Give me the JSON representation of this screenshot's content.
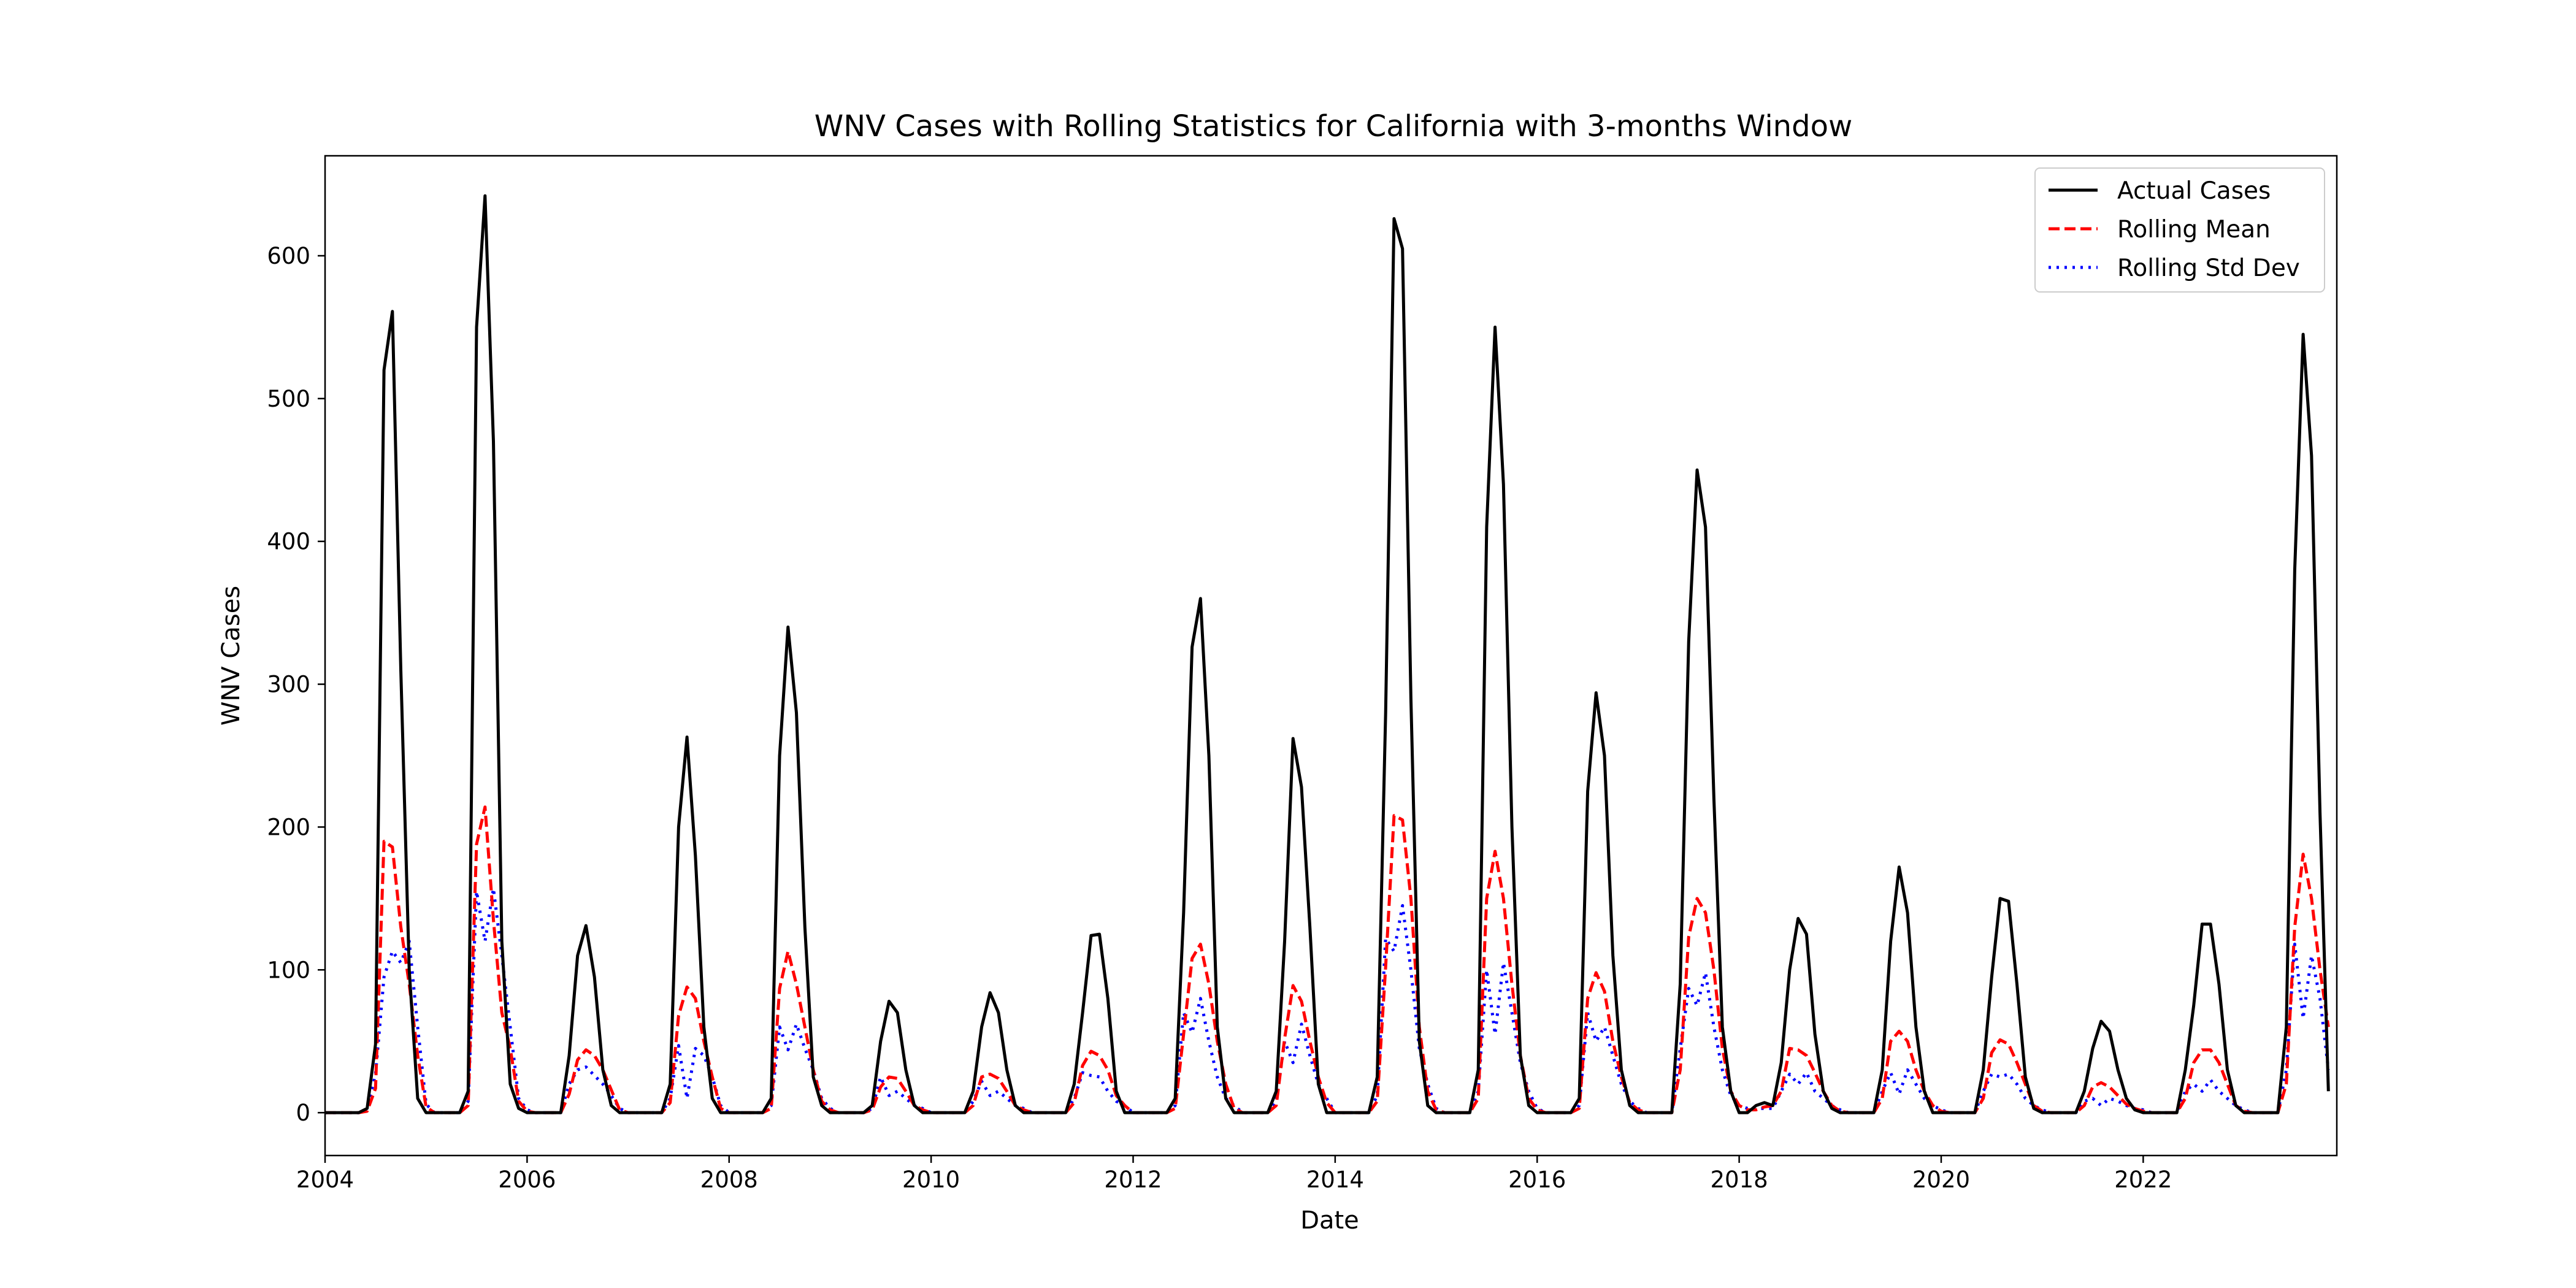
{
  "chart_data": {
    "type": "line",
    "title": "WNV Cases with Rolling Statistics for California with 3-months Window",
    "xlabel": "Date",
    "ylabel": "WNV Cases",
    "x_start": "2004-01",
    "x_end": "2023-12",
    "x_frequency": "monthly",
    "xlim": [
      "2004-01",
      "2023-12"
    ],
    "ylim": [
      -30,
      670
    ],
    "xticks": [
      "2004",
      "2006",
      "2008",
      "2010",
      "2012",
      "2014",
      "2016",
      "2018",
      "2020",
      "2022"
    ],
    "yticks": [
      0,
      100,
      200,
      300,
      400,
      500,
      600
    ],
    "grid": false,
    "legend_position": "top-right",
    "series": [
      {
        "name": "Actual Cases",
        "color": "#000000",
        "style": "solid",
        "values": [
          0,
          0,
          0,
          0,
          0,
          3,
          48,
          520,
          561,
          310,
          100,
          10,
          0,
          0,
          0,
          0,
          0,
          15,
          550,
          642,
          470,
          120,
          20,
          3,
          0,
          0,
          0,
          0,
          0,
          40,
          110,
          131,
          95,
          30,
          5,
          0,
          0,
          0,
          0,
          0,
          0,
          20,
          200,
          263,
          180,
          60,
          10,
          0,
          0,
          0,
          0,
          0,
          0,
          10,
          250,
          340,
          280,
          130,
          25,
          5,
          0,
          0,
          0,
          0,
          0,
          5,
          50,
          78,
          70,
          30,
          5,
          0,
          0,
          0,
          0,
          0,
          0,
          15,
          60,
          84,
          70,
          30,
          5,
          0,
          0,
          0,
          0,
          0,
          0,
          20,
          70,
          124,
          125,
          80,
          15,
          0,
          0,
          0,
          0,
          0,
          0,
          10,
          140,
          326,
          360,
          250,
          60,
          10,
          0,
          0,
          0,
          0,
          0,
          15,
          120,
          262,
          228,
          130,
          20,
          0,
          0,
          0,
          0,
          0,
          0,
          25,
          280,
          626,
          605,
          290,
          50,
          5,
          0,
          0,
          0,
          0,
          0,
          30,
          410,
          550,
          440,
          200,
          40,
          5,
          0,
          0,
          0,
          0,
          0,
          10,
          225,
          294,
          250,
          110,
          30,
          5,
          0,
          0,
          0,
          0,
          0,
          90,
          330,
          450,
          410,
          220,
          60,
          15,
          0,
          0,
          5,
          7,
          5,
          35,
          100,
          136,
          125,
          55,
          15,
          3,
          0,
          0,
          0,
          0,
          0,
          30,
          120,
          172,
          140,
          60,
          15,
          0,
          0,
          0,
          0,
          0,
          0,
          30,
          95,
          150,
          148,
          90,
          25,
          3,
          0,
          0,
          0,
          0,
          0,
          15,
          45,
          64,
          57,
          30,
          10,
          2,
          0,
          0,
          0,
          0,
          0,
          30,
          75,
          132,
          132,
          90,
          30,
          5,
          0,
          0,
          0,
          0,
          0,
          60,
          380,
          545,
          460,
          210,
          15
        ]
      },
      {
        "name": "Rolling Mean",
        "color": "#ff0000",
        "style": "dashed",
        "values": [
          0,
          0,
          0,
          0,
          0,
          1,
          17,
          190,
          186,
          130,
          90,
          40,
          4,
          0,
          0,
          0,
          0,
          5,
          188,
          214,
          135,
          70,
          45,
          8,
          1,
          0,
          0,
          0,
          0,
          13,
          37,
          44,
          40,
          30,
          16,
          2,
          0,
          0,
          0,
          0,
          0,
          7,
          68,
          88,
          80,
          50,
          25,
          3,
          0,
          0,
          0,
          0,
          0,
          3,
          87,
          113,
          90,
          60,
          30,
          8,
          2,
          0,
          0,
          0,
          0,
          2,
          18,
          25,
          24,
          15,
          5,
          2,
          0,
          0,
          0,
          0,
          0,
          5,
          25,
          27,
          24,
          15,
          5,
          2,
          0,
          0,
          0,
          0,
          0,
          7,
          33,
          43,
          40,
          30,
          12,
          5,
          0,
          0,
          0,
          0,
          0,
          3,
          55,
          108,
          118,
          90,
          50,
          20,
          3,
          0,
          0,
          0,
          0,
          5,
          52,
          89,
          78,
          50,
          25,
          7,
          0,
          0,
          0,
          0,
          0,
          8,
          102,
          208,
          205,
          150,
          60,
          15,
          2,
          0,
          0,
          0,
          0,
          10,
          150,
          183,
          150,
          90,
          40,
          10,
          2,
          0,
          0,
          0,
          0,
          3,
          80,
          98,
          85,
          50,
          25,
          7,
          2,
          0,
          0,
          0,
          0,
          30,
          123,
          150,
          140,
          100,
          45,
          15,
          5,
          2,
          2,
          4,
          5,
          15,
          45,
          44,
          40,
          28,
          15,
          5,
          1,
          0,
          0,
          0,
          0,
          10,
          50,
          57,
          50,
          30,
          15,
          5,
          1,
          0,
          0,
          0,
          0,
          10,
          42,
          51,
          48,
          35,
          20,
          5,
          1,
          0,
          0,
          0,
          0,
          5,
          18,
          21,
          18,
          12,
          6,
          3,
          1,
          0,
          0,
          0,
          0,
          10,
          35,
          44,
          44,
          35,
          20,
          5,
          1,
          0,
          0,
          0,
          0,
          20,
          130,
          181,
          150,
          100,
          60
        ]
      },
      {
        "name": "Rolling Std Dev",
        "color": "#0000ff",
        "style": "dotted",
        "values": [
          0,
          0,
          0,
          0,
          0,
          2,
          27,
          95,
          113,
          105,
          120,
          60,
          6,
          0,
          0,
          0,
          0,
          8,
          155,
          120,
          157,
          110,
          60,
          10,
          2,
          0,
          0,
          0,
          0,
          20,
          30,
          32,
          26,
          20,
          12,
          3,
          0,
          0,
          0,
          0,
          0,
          10,
          47,
          10,
          45,
          40,
          25,
          5,
          0,
          0,
          0,
          0,
          0,
          5,
          60,
          44,
          62,
          45,
          30,
          10,
          3,
          0,
          0,
          0,
          0,
          3,
          25,
          12,
          15,
          10,
          5,
          3,
          0,
          0,
          0,
          0,
          0,
          8,
          22,
          12,
          15,
          10,
          5,
          3,
          0,
          0,
          0,
          0,
          0,
          10,
          28,
          26,
          25,
          15,
          8,
          5,
          0,
          0,
          0,
          0,
          0,
          5,
          70,
          56,
          80,
          50,
          25,
          10,
          5,
          0,
          0,
          0,
          0,
          8,
          50,
          35,
          62,
          40,
          20,
          10,
          0,
          0,
          0,
          0,
          0,
          12,
          122,
          113,
          145,
          100,
          45,
          20,
          3,
          0,
          0,
          0,
          0,
          15,
          100,
          55,
          105,
          70,
          35,
          15,
          3,
          0,
          0,
          0,
          0,
          5,
          70,
          50,
          60,
          40,
          20,
          8,
          3,
          0,
          0,
          0,
          0,
          45,
          87,
          75,
          98,
          60,
          30,
          12,
          5,
          3,
          3,
          3,
          3,
          15,
          27,
          20,
          28,
          15,
          10,
          5,
          2,
          0,
          0,
          0,
          0,
          15,
          28,
          13,
          30,
          20,
          10,
          5,
          2,
          0,
          0,
          0,
          0,
          15,
          27,
          25,
          27,
          20,
          10,
          5,
          2,
          0,
          0,
          0,
          0,
          8,
          10,
          5,
          10,
          8,
          5,
          3,
          2,
          0,
          0,
          0,
          0,
          15,
          20,
          15,
          23,
          15,
          10,
          5,
          2,
          0,
          0,
          0,
          0,
          30,
          118,
          66,
          110,
          80,
          30
        ]
      }
    ]
  }
}
